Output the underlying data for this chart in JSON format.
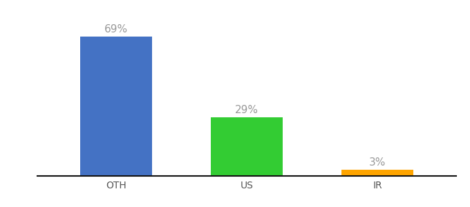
{
  "categories": [
    "OTH",
    "US",
    "IR"
  ],
  "values": [
    69,
    29,
    3
  ],
  "bar_colors": [
    "#4472C4",
    "#33CC33",
    "#FFA500"
  ],
  "value_labels": [
    "69%",
    "29%",
    "3%"
  ],
  "label_color": "#999999",
  "background_color": "#ffffff",
  "ylim": [
    0,
    80
  ],
  "bar_width": 0.55,
  "label_fontsize": 11,
  "tick_fontsize": 10,
  "fig_width": 6.8,
  "fig_height": 3.0,
  "dpi": 100
}
